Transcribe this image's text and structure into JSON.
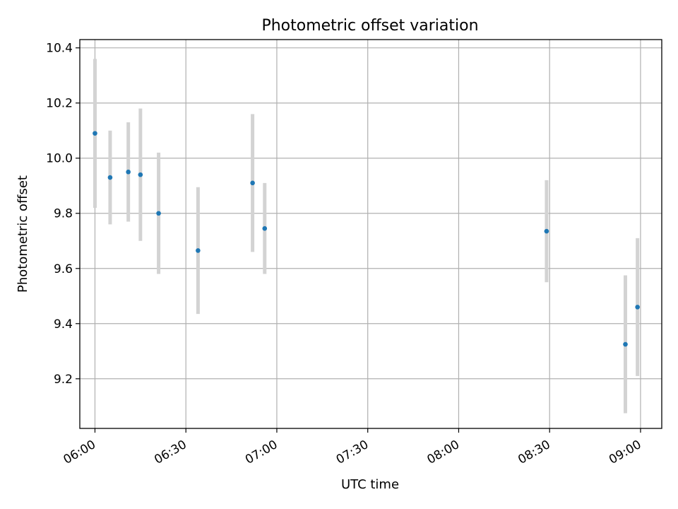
{
  "chart_data": {
    "type": "scatter",
    "title": "Photometric offset variation",
    "xlabel": "UTC time",
    "ylabel": "Photometric offset",
    "x_ticks": [
      "06:00",
      "06:30",
      "07:00",
      "07:30",
      "08:00",
      "08:30",
      "09:00"
    ],
    "y_ticks": [
      "9.2",
      "9.4",
      "9.6",
      "9.8",
      "10.0",
      "10.2",
      "10.4"
    ],
    "xlim": [
      "05:55",
      "09:07"
    ],
    "ylim": [
      9.02,
      10.43
    ],
    "grid": true,
    "point_color": "#1f77b4",
    "errorbar_color": "#d3d3d3",
    "points": [
      {
        "x": "06:00",
        "y": 10.09,
        "err": 0.27
      },
      {
        "x": "06:05",
        "y": 9.93,
        "err": 0.17
      },
      {
        "x": "06:11",
        "y": 9.95,
        "err": 0.18
      },
      {
        "x": "06:15",
        "y": 9.94,
        "err": 0.24
      },
      {
        "x": "06:21",
        "y": 9.8,
        "err": 0.22
      },
      {
        "x": "06:34",
        "y": 9.665,
        "err": 0.23
      },
      {
        "x": "06:52",
        "y": 9.91,
        "err": 0.25
      },
      {
        "x": "06:56",
        "y": 9.745,
        "err": 0.165
      },
      {
        "x": "08:29",
        "y": 9.735,
        "err": 0.185
      },
      {
        "x": "08:55",
        "y": 9.325,
        "err": 0.25
      },
      {
        "x": "08:59",
        "y": 9.46,
        "err": 0.25
      }
    ]
  }
}
